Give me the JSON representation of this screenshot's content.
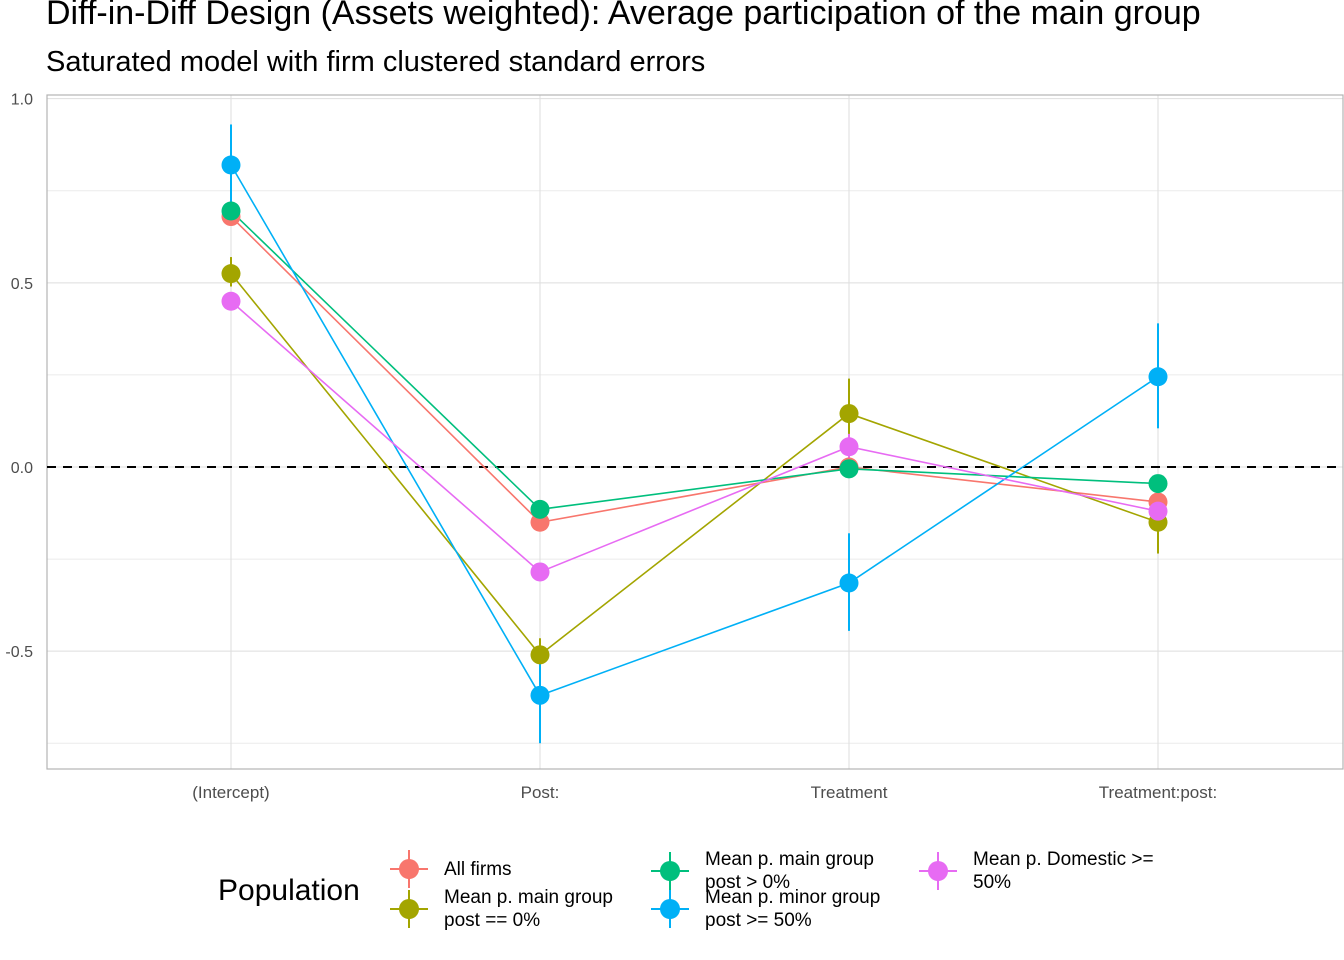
{
  "title": "Diff-in-Diff Design (Assets weighted): Average participation of the main group",
  "subtitle": "Saturated model with firm clustered standard errors",
  "legend": {
    "title": "Population"
  },
  "chart_data": {
    "type": "line",
    "categories": [
      "(Intercept)",
      "Post:",
      "Treatment",
      "Treatment:post:"
    ],
    "y_ticks": [
      "1.0",
      "0.5",
      "0.0",
      "-0.5"
    ],
    "ylim": [
      -0.82,
      1.01
    ],
    "reference_line": {
      "y": 0,
      "style": "dashed"
    },
    "grid": true,
    "error_bars": true,
    "legend_position": "bottom",
    "series": [
      {
        "name": "All firms",
        "color": "#F8766D",
        "values": [
          0.68,
          -0.15,
          0.0,
          -0.095
        ],
        "lower": [
          0.67,
          -0.16,
          -0.01,
          -0.105
        ],
        "upper": [
          0.69,
          -0.14,
          0.01,
          -0.085
        ]
      },
      {
        "name": "Mean p. main group\npost == 0%",
        "color": "#A3A500",
        "values": [
          0.525,
          -0.51,
          0.145,
          -0.15
        ],
        "lower": [
          0.49,
          -0.56,
          0.06,
          -0.235
        ],
        "upper": [
          0.57,
          -0.465,
          0.24,
          -0.07
        ]
      },
      {
        "name": "Mean p. main group\npost > 0%",
        "color": "#00BF7D",
        "values": [
          0.695,
          -0.115,
          -0.005,
          -0.045
        ],
        "lower": [
          0.685,
          -0.125,
          -0.015,
          -0.055
        ],
        "upper": [
          0.705,
          -0.105,
          0.005,
          -0.035
        ]
      },
      {
        "name": "Mean p. minor group\npost >= 50%",
        "color": "#00B0F6",
        "values": [
          0.82,
          -0.62,
          -0.315,
          0.245
        ],
        "lower": [
          0.71,
          -0.75,
          -0.445,
          0.105
        ],
        "upper": [
          0.93,
          -0.49,
          -0.18,
          0.39
        ]
      },
      {
        "name": "Mean p. Domestic >=\n50%",
        "color": "#E76BF3",
        "values": [
          0.45,
          -0.285,
          0.055,
          -0.12
        ],
        "lower": [
          0.44,
          -0.295,
          0.02,
          -0.145
        ],
        "upper": [
          0.46,
          -0.275,
          0.09,
          -0.095
        ]
      }
    ]
  }
}
